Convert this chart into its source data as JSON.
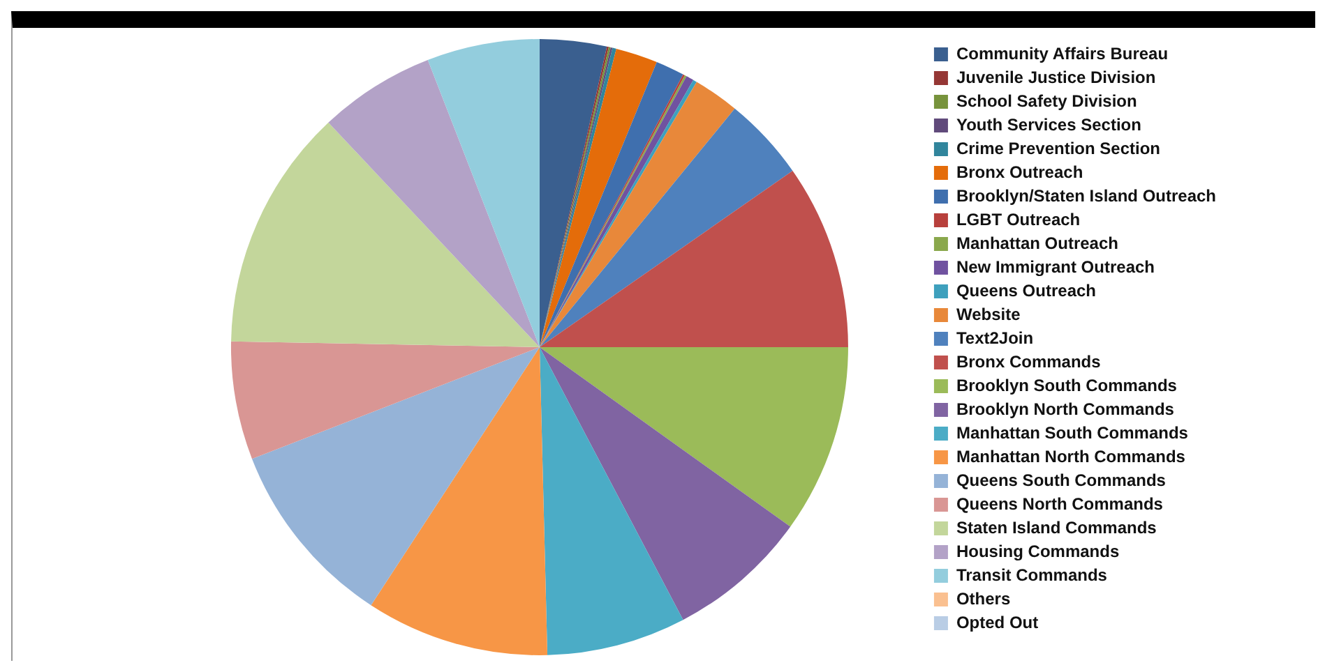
{
  "chart_data": {
    "type": "pie",
    "categories": [
      "Community Affairs Bureau",
      "Juvenile Justice Division",
      "School Safety Division",
      "Youth Services Section",
      "Crime Prevention Section",
      "Bronx Outreach",
      "Brooklyn/Staten Island Outreach",
      "LGBT Outreach",
      "Manhattan Outreach",
      "New Immigrant Outreach",
      "Queens Outreach",
      "Website",
      "Text2Join",
      "Bronx Commands",
      "Brooklyn South Commands",
      "Brooklyn North Commands",
      "Manhattan South Commands",
      "Manhattan North Commands",
      "Queens South Commands",
      "Queens North Commands",
      "Staten Island Commands",
      "Housing Commands",
      "Transit Commands",
      "Others",
      "Opted Out"
    ],
    "values": [
      3.5,
      0.1,
      0.1,
      0.1,
      0.2,
      2.2,
      1.5,
      0.1,
      0.1,
      0.4,
      0.2,
      2.4,
      4.4,
      9.7,
      9.9,
      7.4,
      7.3,
      9.6,
      9.9,
      6.2,
      12.7,
      6.1,
      5.9,
      0,
      0
    ],
    "colors": [
      "#3a5f8f",
      "#953735",
      "#77933c",
      "#604a7b",
      "#31859c",
      "#e46c0a",
      "#3f6fae",
      "#b8403c",
      "#8aa84c",
      "#7052a0",
      "#3ea0bd",
      "#e8883a",
      "#4f81bd",
      "#c0504d",
      "#9bbb59",
      "#8064a2",
      "#4bacc6",
      "#f79646",
      "#95b3d7",
      "#d99694",
      "#c3d69b",
      "#b3a2c7",
      "#93cddd",
      "#fac090",
      "#b9cde5"
    ],
    "legend": "right"
  }
}
